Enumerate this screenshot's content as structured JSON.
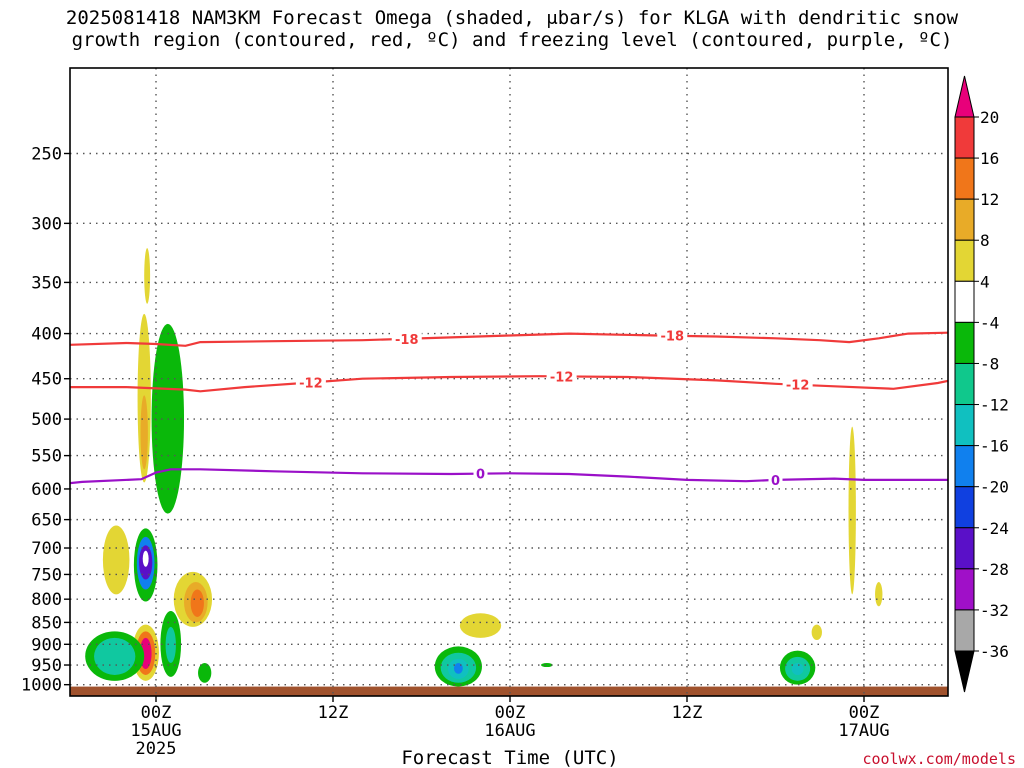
{
  "chart_data": {
    "type": "heatmap",
    "title_line1": "2025081418 NAM3KM Forecast Omega (shaded, μbar/s) for KLGA with dendritic snow",
    "title_line2": "growth region (contoured, red, ºC) and freezing level (contoured, purple, ºC)",
    "xlabel": "Forecast Time (UTC)",
    "credit": "coolwx.com/models",
    "x_axis": {
      "range_hours": [
        -9,
        41
      ],
      "ticks": [
        {
          "hour": 0,
          "lines": [
            "00Z",
            "15AUG",
            "2025"
          ]
        },
        {
          "hour": 12,
          "lines": [
            "12Z"
          ]
        },
        {
          "hour": 24,
          "lines": [
            "00Z",
            "16AUG"
          ]
        },
        {
          "hour": 36,
          "lines": [
            "12Z"
          ]
        },
        {
          "hour": 48,
          "lines": [
            "00Z",
            "17AUG"
          ]
        }
      ]
    },
    "y_axis": {
      "scale": "log-pressure-hPa",
      "range": [
        1030,
        200
      ],
      "ticks": [
        250,
        300,
        350,
        400,
        450,
        500,
        550,
        600,
        650,
        700,
        750,
        800,
        850,
        900,
        950,
        1000
      ]
    },
    "grid": true,
    "colorbar": {
      "ticks": [
        "20",
        "16",
        "12",
        "8",
        "4",
        "-4",
        "-8",
        "-12",
        "-16",
        "-20",
        "-24",
        "-28",
        "-32",
        "-36"
      ],
      "colors": [
        "#e8007a",
        "#f03a3a",
        "#f0761a",
        "#e8ab28",
        "#e3d634",
        "#ffffff",
        "#0ab80a",
        "#10c88c",
        "#10c0c0",
        "#1080ee",
        "#1040e0",
        "#5a10c8",
        "#a010c8",
        "#a8a8a8",
        "#000000"
      ]
    },
    "contours": [
      {
        "value": -18,
        "color": "#f03a3a",
        "label": "-18",
        "points": [
          [
            -9,
            414
          ],
          [
            -6,
            412
          ],
          [
            -2,
            410
          ],
          [
            0,
            411
          ],
          [
            2,
            413
          ],
          [
            3,
            409
          ],
          [
            8,
            408
          ],
          [
            14,
            407
          ],
          [
            20,
            404
          ],
          [
            24,
            402
          ],
          [
            28,
            400
          ],
          [
            34,
            402
          ],
          [
            38,
            403
          ],
          [
            42,
            405
          ],
          [
            45,
            407
          ],
          [
            47,
            409
          ],
          [
            49,
            405
          ],
          [
            51,
            400
          ],
          [
            54,
            399
          ],
          [
            55,
            397
          ]
        ],
        "label_hours": [
          -7.5,
          17,
          35
        ]
      },
      {
        "value": -12,
        "color": "#f03a3a",
        "label": "-12",
        "points": [
          [
            -9,
            462
          ],
          [
            -6,
            460
          ],
          [
            -2,
            460
          ],
          [
            2,
            463
          ],
          [
            3,
            465
          ],
          [
            6,
            460
          ],
          [
            10,
            455
          ],
          [
            14,
            450
          ],
          [
            20,
            448
          ],
          [
            26,
            447
          ],
          [
            32,
            448
          ],
          [
            38,
            452
          ],
          [
            42,
            456
          ],
          [
            46,
            459
          ],
          [
            50,
            462
          ],
          [
            53,
            455
          ],
          [
            55,
            448
          ]
        ],
        "label_hours": [
          10.5,
          27.5,
          43.5
        ]
      },
      {
        "value": 0,
        "color": "#9a10c8",
        "label": "0",
        "points": [
          [
            -9,
            598
          ],
          [
            -5,
            589
          ],
          [
            -1,
            585
          ],
          [
            0,
            575
          ],
          [
            1,
            570
          ],
          [
            3,
            570
          ],
          [
            8,
            573
          ],
          [
            14,
            576
          ],
          [
            20,
            577
          ],
          [
            24,
            576
          ],
          [
            28,
            577
          ],
          [
            32,
            581
          ],
          [
            36,
            586
          ],
          [
            40,
            588
          ],
          [
            42,
            586
          ],
          [
            46,
            584
          ],
          [
            48,
            586
          ],
          [
            52,
            586
          ],
          [
            55,
            586
          ]
        ],
        "label_hours": [
          22,
          42
        ]
      }
    ],
    "blobs": [
      {
        "hour": -0.7,
        "p": 720,
        "dh": 0.8,
        "dp": [
          665,
          805
        ],
        "fill": "#0ab80a",
        "label": "-4"
      },
      {
        "hour": -0.7,
        "p": 720,
        "dh": 0.6,
        "dp": [
          680,
          780
        ],
        "fill": "#1080ee",
        "label": "-16"
      },
      {
        "hour": -0.7,
        "p": 720,
        "dh": 0.45,
        "dp": [
          695,
          760
        ],
        "fill": "#5a10c8",
        "label": "-24"
      },
      {
        "hour": -0.7,
        "p": 720,
        "dh": 0.2,
        "dp": [
          705,
          735
        ],
        "fill": "#ffffff",
        "label": "4"
      },
      {
        "hour": -0.7,
        "p": 920,
        "dh": 0.9,
        "dp": [
          855,
          990
        ],
        "fill": "#e3d634",
        "label": "4"
      },
      {
        "hour": -0.7,
        "p": 920,
        "dh": 0.65,
        "dp": [
          870,
          975
        ],
        "fill": "#f0761a",
        "label": "12"
      },
      {
        "hour": -0.7,
        "p": 920,
        "dh": 0.4,
        "dp": [
          885,
          960
        ],
        "fill": "#e8007a",
        "label": "20"
      },
      {
        "hour": -2.8,
        "p": 920,
        "dh": 2.0,
        "dp": [
          870,
          990
        ],
        "fill": "#0ab80a",
        "label": "-4"
      },
      {
        "hour": -2.8,
        "p": 925,
        "dh": 1.4,
        "dp": [
          885,
          975
        ],
        "fill": "#10c8a0",
        "label": "-12"
      },
      {
        "hour": -2.7,
        "p": 725,
        "dh": 0.9,
        "dp": [
          660,
          790
        ],
        "fill": "#e3d634",
        "label": "4"
      },
      {
        "hour": 2.5,
        "p": 800,
        "dh": 1.3,
        "dp": [
          745,
          860
        ],
        "fill": "#e3d634",
        "label": "4"
      },
      {
        "hour": 2.7,
        "p": 805,
        "dh": 0.8,
        "dp": [
          765,
          850
        ],
        "fill": "#e8ab28",
        "label": "8"
      },
      {
        "hour": 2.8,
        "p": 810,
        "dh": 0.45,
        "dp": [
          780,
          838
        ],
        "fill": "#f0761a",
        "label": "12"
      },
      {
        "hour": 1.0,
        "p": 900,
        "dh": 0.7,
        "dp": [
          825,
          980
        ],
        "fill": "#0ab80a",
        "label": "-4"
      },
      {
        "hour": 1.0,
        "p": 905,
        "dh": 0.35,
        "dp": [
          860,
          945
        ],
        "fill": "#10c8a0",
        "label": "-8"
      },
      {
        "hour": 3.3,
        "p": 970,
        "dh": 0.45,
        "dp": [
          945,
          995
        ],
        "fill": "#0ab80a",
        "label": "-4"
      },
      {
        "hour": 0.8,
        "p": 500,
        "dh": 1.1,
        "dp": [
          390,
          640
        ],
        "fill": "#0ab80a",
        "label": "-4"
      },
      {
        "hour": -0.8,
        "p": 480,
        "dh": 0.45,
        "dp": [
          380,
          590
        ],
        "fill": "#e3d634",
        "label": "4"
      },
      {
        "hour": -0.8,
        "p": 520,
        "dh": 0.25,
        "dp": [
          470,
          570
        ],
        "fill": "#e8ab28",
        "label": "8"
      },
      {
        "hour": -0.6,
        "p": 340,
        "dh": 0.2,
        "dp": [
          320,
          370
        ],
        "fill": "#e3d634",
        "label": "4"
      },
      {
        "hour": -7.8,
        "p": 810,
        "dh": 0.5,
        "dp": [
          770,
          860
        ],
        "fill": "#e3d634",
        "label": "4"
      },
      {
        "hour": 20.5,
        "p": 960,
        "dh": 1.6,
        "dp": [
          905,
          1005
        ],
        "fill": "#0ab80a",
        "label": "-4"
      },
      {
        "hour": 20.5,
        "p": 960,
        "dh": 1.2,
        "dp": [
          920,
          995
        ],
        "fill": "#10c8a0",
        "label": "-12"
      },
      {
        "hour": 20.5,
        "p": 960,
        "dh": 0.7,
        "dp": [
          935,
          985
        ],
        "fill": "#10c0c0",
        "label": "-16"
      },
      {
        "hour": 20.5,
        "p": 958,
        "dh": 0.3,
        "dp": [
          945,
          972
        ],
        "fill": "#1080ee",
        "label": "-20"
      },
      {
        "hour": 22.0,
        "p": 860,
        "dh": 1.4,
        "dp": [
          830,
          885
        ],
        "fill": "#e3d634",
        "label": "4"
      },
      {
        "hour": 26.5,
        "p": 950,
        "dh": 0.4,
        "dp": [
          945,
          955
        ],
        "fill": "#0ab80a",
        "label": "-4"
      },
      {
        "hour": 43.5,
        "p": 960,
        "dh": 1.2,
        "dp": [
          915,
          1000
        ],
        "fill": "#0ab80a",
        "label": "-4"
      },
      {
        "hour": 43.5,
        "p": 960,
        "dh": 0.85,
        "dp": [
          930,
          990
        ],
        "fill": "#10c8a0",
        "label": "-12"
      },
      {
        "hour": 43.5,
        "p": 958,
        "dh": 0.4,
        "dp": [
          945,
          975
        ],
        "fill": "#10c0c0",
        "label": "-16"
      },
      {
        "hour": 44.8,
        "p": 870,
        "dh": 0.35,
        "dp": [
          855,
          890
        ],
        "fill": "#e3d634",
        "label": "4"
      },
      {
        "hour": 47.2,
        "p": 650,
        "dh": 0.25,
        "dp": [
          510,
          790
        ],
        "fill": "#e3d634",
        "label": "4"
      },
      {
        "hour": 49.0,
        "p": 790,
        "dh": 0.25,
        "dp": [
          765,
          815
        ],
        "fill": "#e3d634",
        "label": "4"
      },
      {
        "hour": 55.5,
        "p": 260,
        "dh": 0.7,
        "dp": [
          215,
          315
        ],
        "fill": "#e3d634",
        "label": "4"
      }
    ],
    "terrain_color": "#a0522d"
  }
}
